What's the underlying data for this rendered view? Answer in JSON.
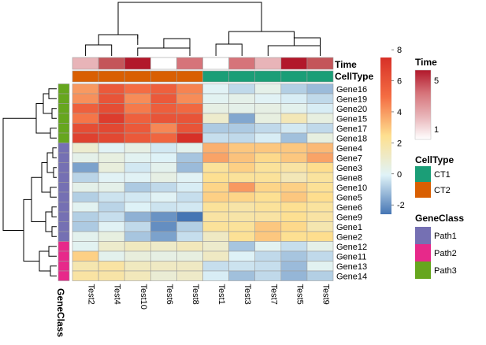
{
  "chart_data": {
    "type": "heatmap",
    "title": "",
    "columns": [
      "Test2",
      "Test4",
      "Test10",
      "Test6",
      "Test8",
      "Test1",
      "Test3",
      "Test7",
      "Test5",
      "Test9"
    ],
    "rows": [
      "Gene16",
      "Gene19",
      "Gene20",
      "Gene15",
      "Gene17",
      "Gene18",
      "Gene4",
      "Gene7",
      "Gene3",
      "Gene8",
      "Gene10",
      "Gene5",
      "Gene6",
      "Gene9",
      "Gene1",
      "Gene2",
      "Gene12",
      "Gene11",
      "Gene13",
      "Gene14"
    ],
    "values": [
      [
        4.0,
        5.8,
        5.0,
        5.5,
        4.5,
        0.0,
        -0.6,
        0.3,
        -0.8,
        -1.2
      ],
      [
        4.2,
        6.0,
        4.3,
        5.8,
        4.3,
        0.1,
        0.3,
        0.0,
        -0.2,
        -0.6
      ],
      [
        5.5,
        6.3,
        4.7,
        5.6,
        5.2,
        0.4,
        0.3,
        0.4,
        0.2,
        -0.2
      ],
      [
        4.8,
        7.0,
        5.5,
        6.0,
        6.0,
        1.0,
        -1.6,
        0.5,
        1.5,
        0.5
      ],
      [
        6.3,
        6.5,
        5.8,
        4.4,
        6.0,
        -0.9,
        -0.9,
        -0.6,
        -0.3,
        -0.6
      ],
      [
        6.8,
        6.5,
        5.8,
        5.3,
        7.5,
        -0.5,
        -0.6,
        -0.2,
        -1.1,
        0.5
      ],
      [
        0.9,
        0.0,
        0.4,
        -0.3,
        0.2,
        3.5,
        3.0,
        3.0,
        3.0,
        3.3
      ],
      [
        0.3,
        0.5,
        0.1,
        -0.1,
        -1.0,
        3.8,
        3.1,
        2.6,
        3.0,
        3.8
      ],
      [
        -1.7,
        0.6,
        -0.3,
        0.2,
        -1.2,
        2.2,
        2.8,
        2.2,
        2.0,
        2.5
      ],
      [
        -0.7,
        0.0,
        0.0,
        0.4,
        0.0,
        2.4,
        2.2,
        2.2,
        1.5,
        2.1
      ],
      [
        0.3,
        0.3,
        -0.9,
        -0.6,
        -0.2,
        2.7,
        4.0,
        2.7,
        2.8,
        2.3
      ],
      [
        -0.8,
        -0.4,
        -0.3,
        0.0,
        -0.5,
        2.8,
        2.7,
        2.4,
        3.0,
        2.5
      ],
      [
        0.1,
        -0.7,
        -0.1,
        -0.4,
        -0.3,
        2.2,
        1.9,
        2.2,
        2.4,
        2.1
      ],
      [
        -0.8,
        -0.5,
        -1.4,
        -2.0,
        -2.6,
        2.0,
        1.9,
        2.0,
        2.4,
        2.0
      ],
      [
        -0.9,
        0.0,
        -0.6,
        -2.1,
        -0.8,
        2.2,
        2.2,
        3.0,
        2.6,
        1.7
      ],
      [
        0.2,
        0.5,
        -1.0,
        -1.7,
        -0.5,
        1.2,
        2.3,
        3.0,
        2.4,
        2.5
      ],
      [
        0.1,
        1.0,
        1.3,
        1.1,
        1.4,
        1.0,
        -1.0,
        0.1,
        -0.5,
        0.3
      ],
      [
        2.8,
        0.2,
        0.6,
        0.4,
        0.5,
        1.2,
        -0.1,
        -0.6,
        -1.0,
        -0.6
      ],
      [
        1.7,
        2.0,
        1.3,
        1.2,
        1.2,
        -0.5,
        -0.4,
        -0.5,
        -1.2,
        0.1
      ],
      [
        2.0,
        1.9,
        1.4,
        0.8,
        1.1,
        -0.2,
        -1.1,
        -0.6,
        -1.3,
        -0.8
      ]
    ],
    "color_scale": {
      "min": -2.6,
      "max": 7.5,
      "colors": [
        "#4575b4",
        "#e0f3f8",
        "#fee090",
        "#f46d43",
        "#d73027"
      ],
      "ticks": [
        -2,
        0,
        2,
        4,
        6,
        8
      ]
    },
    "column_annotations": {
      "Time": [
        2,
        4,
        5,
        1,
        3,
        1,
        3,
        2,
        5,
        4
      ],
      "CellType": [
        "CT2",
        "CT2",
        "CT2",
        "CT2",
        "CT2",
        "CT1",
        "CT1",
        "CT1",
        "CT1",
        "CT1"
      ]
    },
    "row_annotations": {
      "GeneClass": [
        "Path3",
        "Path3",
        "Path3",
        "Path3",
        "Path3",
        "Path3",
        "Path1",
        "Path1",
        "Path1",
        "Path1",
        "Path1",
        "Path1",
        "Path1",
        "Path1",
        "Path1",
        "Path1",
        "Path2",
        "Path2",
        "Path2",
        "Path2"
      ]
    },
    "annotation_titles": {
      "time": "Time",
      "celltype": "CellType",
      "geneclass": "GeneClass"
    },
    "time_legend": {
      "title": "Time",
      "colors": [
        "#b2182b",
        "#d6747a",
        "#e8b4b8",
        "#ffffff"
      ],
      "labels": [
        "5",
        "1"
      ],
      "range": [
        1,
        5
      ]
    },
    "celltype_legend": {
      "title": "CellType",
      "items": [
        {
          "label": "CT1",
          "color": "#1b9e77"
        },
        {
          "label": "CT2",
          "color": "#d95f02"
        }
      ]
    },
    "geneclass_legend": {
      "title": "GeneClass",
      "items": [
        {
          "label": "Path1",
          "color": "#7570b3"
        },
        {
          "label": "Path2",
          "color": "#e7298a"
        },
        {
          "label": "Path3",
          "color": "#66a61e"
        }
      ]
    },
    "colors": {
      "time": {
        "1": "#ffffff",
        "2": "#e8b4b8",
        "3": "#d6747a",
        "4": "#c4555a",
        "5": "#b2182b"
      },
      "border": "#9e9e9e",
      "dendro": "#000000"
    }
  }
}
